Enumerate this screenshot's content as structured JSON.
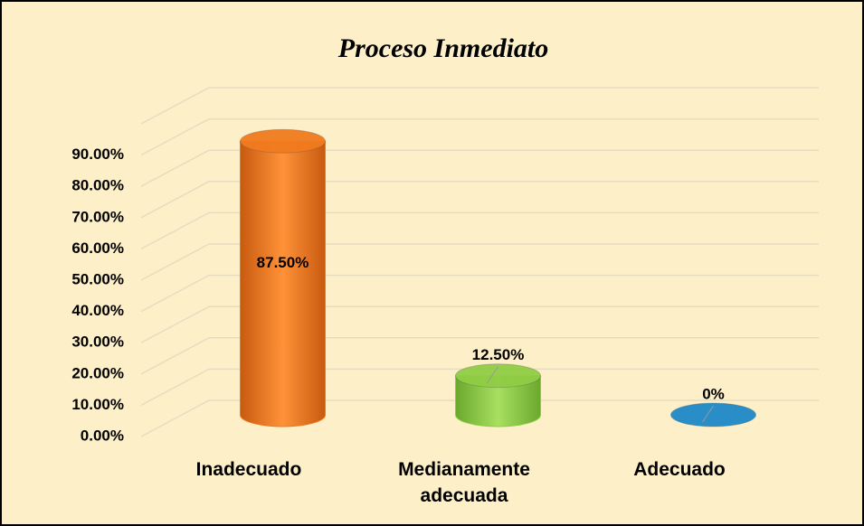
{
  "chart_data": {
    "type": "bar3d",
    "title": "Proceso Inmediato",
    "categories": [
      "Inadecuado",
      "Medianamente adecuada",
      "Adecuado"
    ],
    "values": [
      87.5,
      12.5,
      0
    ],
    "value_labels": [
      "87.50%",
      "12.50%",
      "0%"
    ],
    "colors": [
      "#f07a1e",
      "#8fcc44",
      "#1e88c8"
    ],
    "ylim": [
      0,
      100
    ],
    "yticks": [
      {
        "value": 0,
        "label": "0.00%"
      },
      {
        "value": 10,
        "label": "10.00%"
      },
      {
        "value": 20,
        "label": "20.00%"
      },
      {
        "value": 30,
        "label": "30.00%"
      },
      {
        "value": 40,
        "label": "40.00%"
      },
      {
        "value": 50,
        "label": "50.00%"
      },
      {
        "value": 60,
        "label": "60.00%"
      },
      {
        "value": 70,
        "label": "70.00%"
      },
      {
        "value": 80,
        "label": "80.00%"
      },
      {
        "value": 90,
        "label": "90.00%"
      }
    ],
    "grid": true
  }
}
